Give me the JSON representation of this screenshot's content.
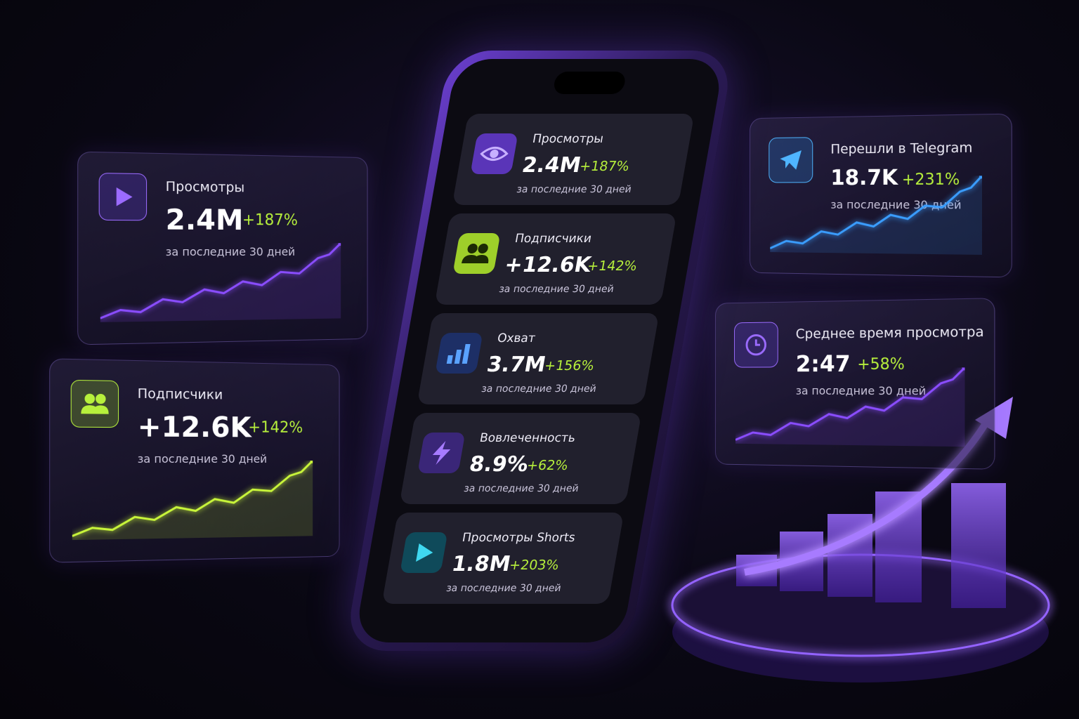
{
  "left_cards": [
    {
      "title": "Просмотры",
      "value": "2.4M",
      "change": "+187%",
      "period": "за последние 30 дней"
    },
    {
      "title": "Подписчики",
      "value": "+12.6K",
      "change": "+142%",
      "period": "за последние 30 дней"
    }
  ],
  "phone_cards": [
    {
      "title": "Просмотры",
      "value": "2.4M",
      "change": "+187%",
      "period": "за последние 30 дней"
    },
    {
      "title": "Подписчики",
      "value": "+12.6K",
      "change": "+142%",
      "period": "за последние 30 дней"
    },
    {
      "title": "Охват",
      "value": "3.7M",
      "change": "+156%",
      "period": "за последние 30 дней"
    },
    {
      "title": "Вовлеченность",
      "value": "8.9%",
      "change": "+62%",
      "period": "за последние 30 дней"
    },
    {
      "title": "Просмотры Shorts",
      "value": "1.8M",
      "change": "+203%",
      "period": "за последние 30 дней"
    }
  ],
  "right_cards": [
    {
      "title": "Перешли в Telegram",
      "value": "18.7K",
      "change": "+231%",
      "period": "за последние 30 дней"
    },
    {
      "title": "Среднее время просмотра",
      "value": "2:47",
      "change": "+58%",
      "period": "за последние 30 дней"
    }
  ]
}
